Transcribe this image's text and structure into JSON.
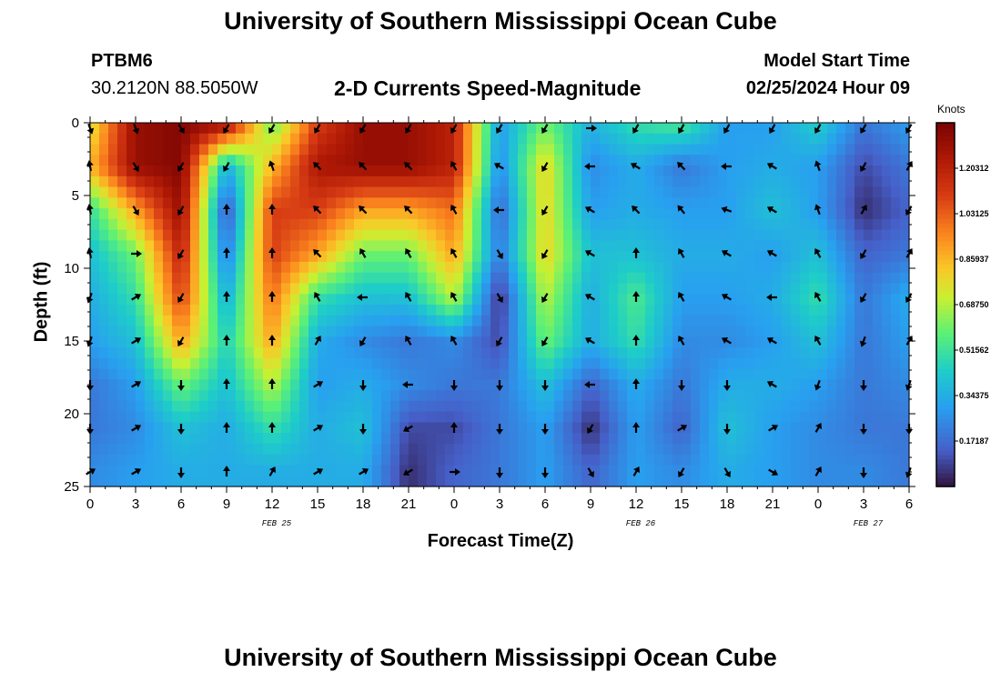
{
  "header": {
    "title": "University of Southern Mississippi Ocean Cube",
    "station": "PTBM6",
    "coords": "30.2120N  88.5050W",
    "subtitle": "2-D Currents Speed-Magnitude",
    "model_start_label": "Model Start Time",
    "model_start_value": "02/25/2024 Hour 09"
  },
  "footer": {
    "title": "University of Southern Mississippi Ocean Cube"
  },
  "chart_data": {
    "type": "heatmap",
    "title": "2-D Currents Speed-Magnitude",
    "xlabel": "Forecast Time(Z)",
    "ylabel": "Depth (ft)",
    "colorbar_label": "Knots",
    "x_hours": [
      0,
      3,
      6,
      9,
      12,
      15,
      18,
      21,
      24,
      27,
      30,
      33,
      36,
      39,
      42,
      45,
      48,
      51,
      54
    ],
    "x_tick_labels": [
      "0",
      "3",
      "6",
      "9",
      "12",
      "15",
      "18",
      "21",
      "0",
      "3",
      "6",
      "9",
      "12",
      "15",
      "18",
      "21",
      "0",
      "3",
      "6"
    ],
    "date_labels": [
      {
        "hour": 12,
        "label": "FEB 25"
      },
      {
        "hour": 36,
        "label": "FEB 26"
      },
      {
        "hour": 51,
        "label": "FEB 27"
      }
    ],
    "y_ticks": [
      0,
      5,
      10,
      15,
      20,
      25
    ],
    "ylim": [
      0,
      25
    ],
    "xlim": [
      0,
      54
    ],
    "colorbar_ticks": [
      "1.20312",
      "1.03125",
      "0.85937",
      "0.68750",
      "0.51562",
      "0.34375",
      "0.17187"
    ],
    "colorbar_tick_values": [
      1.20312,
      1.03125,
      0.85937,
      0.6875,
      0.51562,
      0.34375,
      0.17187
    ],
    "crange": [
      0,
      1.375
    ],
    "depth_levels": [
      0,
      3,
      6,
      9,
      12,
      15,
      18,
      21,
      24
    ],
    "speed_knots": [
      [
        0.74,
        1.3,
        1.35,
        1.3,
        0.58,
        1.1,
        1.3,
        1.3,
        1.2,
        0.3,
        0.6,
        0.36,
        0.5,
        0.55,
        0.3,
        0.3,
        0.45,
        0.2,
        0.3
      ],
      [
        0.86,
        1.3,
        1.35,
        0.34,
        0.86,
        1.25,
        1.3,
        1.3,
        1.2,
        0.25,
        0.8,
        0.25,
        0.34,
        0.2,
        0.3,
        0.34,
        0.3,
        0.1,
        0.2
      ],
      [
        0.5,
        0.9,
        1.3,
        0.1,
        1.1,
        1.1,
        0.9,
        0.9,
        1.0,
        0.15,
        0.8,
        0.3,
        0.34,
        0.3,
        0.3,
        0.4,
        0.3,
        0.05,
        0.15
      ],
      [
        0.4,
        0.6,
        1.2,
        0.2,
        1.1,
        0.9,
        0.6,
        0.6,
        0.9,
        0.2,
        0.8,
        0.4,
        0.4,
        0.34,
        0.34,
        0.3,
        0.4,
        0.15,
        0.2
      ],
      [
        0.34,
        0.5,
        1.1,
        0.34,
        1.0,
        0.5,
        0.4,
        0.4,
        0.7,
        0.05,
        0.7,
        0.34,
        0.55,
        0.3,
        0.3,
        0.34,
        0.5,
        0.2,
        0.34
      ],
      [
        0.3,
        0.4,
        0.9,
        0.45,
        0.9,
        0.34,
        0.25,
        0.2,
        0.25,
        0.1,
        0.6,
        0.34,
        0.5,
        0.25,
        0.25,
        0.3,
        0.4,
        0.2,
        0.3
      ],
      [
        0.2,
        0.3,
        0.6,
        0.4,
        0.7,
        0.3,
        0.34,
        0.25,
        0.2,
        0.2,
        0.4,
        0.15,
        0.34,
        0.2,
        0.34,
        0.34,
        0.3,
        0.2,
        0.25
      ],
      [
        0.2,
        0.25,
        0.4,
        0.34,
        0.5,
        0.34,
        0.4,
        0.1,
        0.1,
        0.2,
        0.3,
        0.05,
        0.3,
        0.15,
        0.4,
        0.3,
        0.25,
        0.2,
        0.2
      ],
      [
        0.25,
        0.3,
        0.34,
        0.34,
        0.34,
        0.34,
        0.34,
        0.05,
        0.15,
        0.2,
        0.3,
        0.15,
        0.3,
        0.25,
        0.34,
        0.3,
        0.25,
        0.25,
        0.2
      ]
    ],
    "direction_deg": [
      [
        160,
        160,
        150,
        210,
        210,
        210,
        210,
        210,
        210,
        210,
        210,
        90,
        210,
        210,
        210,
        210,
        210,
        210,
        210
      ],
      [
        -10,
        150,
        210,
        210,
        340,
        315,
        315,
        315,
        330,
        300,
        210,
        270,
        300,
        315,
        270,
        300,
        340,
        210,
        30
      ],
      [
        -10,
        150,
        210,
        0,
        0,
        315,
        315,
        315,
        330,
        270,
        210,
        300,
        315,
        320,
        290,
        300,
        340,
        30,
        210
      ],
      [
        -10,
        90,
        210,
        0,
        0,
        315,
        330,
        330,
        330,
        150,
        210,
        300,
        0,
        330,
        300,
        300,
        330,
        210,
        30
      ],
      [
        200,
        60,
        210,
        0,
        0,
        330,
        270,
        330,
        330,
        150,
        210,
        300,
        0,
        330,
        300,
        270,
        330,
        210,
        210
      ],
      [
        200,
        60,
        210,
        0,
        0,
        30,
        210,
        330,
        330,
        210,
        210,
        300,
        0,
        330,
        300,
        300,
        330,
        200,
        30
      ],
      [
        180,
        60,
        180,
        0,
        0,
        60,
        180,
        270,
        180,
        180,
        180,
        270,
        0,
        180,
        180,
        300,
        200,
        180,
        200
      ],
      [
        180,
        60,
        180,
        0,
        0,
        60,
        180,
        240,
        0,
        180,
        180,
        210,
        0,
        60,
        180,
        60,
        30,
        180,
        180
      ],
      [
        60,
        60,
        180,
        0,
        30,
        60,
        60,
        240,
        90,
        180,
        180,
        150,
        30,
        210,
        150,
        120,
        30,
        180,
        200
      ]
    ]
  }
}
